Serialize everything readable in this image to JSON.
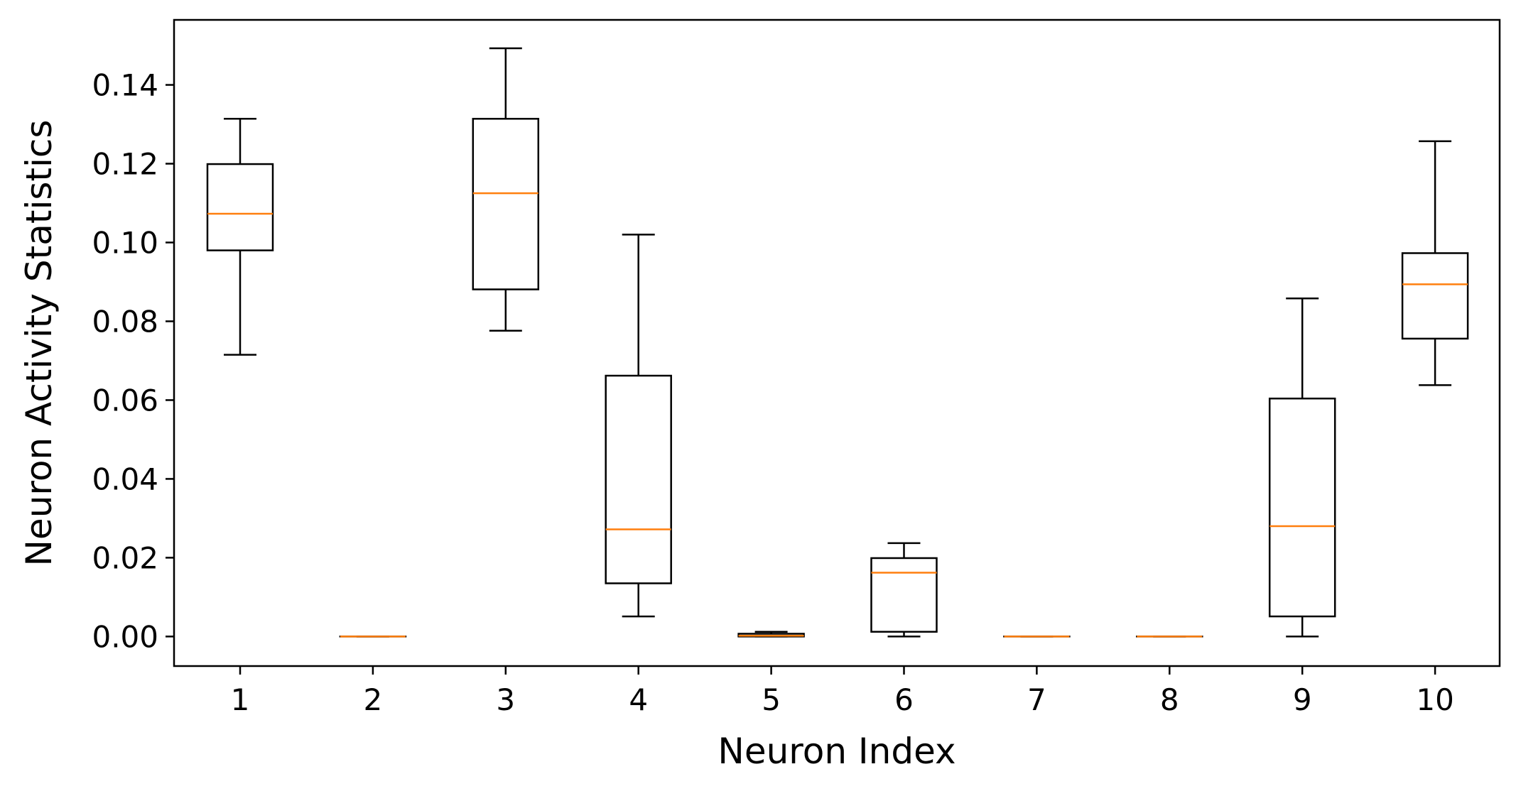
{
  "chart_data": {
    "type": "box",
    "xlabel": "Neuron Index",
    "ylabel": "Neuron Activity Statistics",
    "categories": [
      "1",
      "2",
      "3",
      "4",
      "5",
      "6",
      "7",
      "8",
      "9",
      "10"
    ],
    "ylim": [
      -0.0075,
      0.1565
    ],
    "yticks": [
      "0.00",
      "0.02",
      "0.04",
      "0.06",
      "0.08",
      "0.10",
      "0.12",
      "0.14"
    ],
    "grid": false,
    "boxes": [
      {
        "label": "1",
        "whisker_low": 0.0715,
        "q1": 0.098,
        "median": 0.1073,
        "q3": 0.1199,
        "whisker_high": 0.1314
      },
      {
        "label": "2",
        "whisker_low": 0.0,
        "q1": 0.0,
        "median": 0.0,
        "q3": 0.0,
        "whisker_high": 0.0
      },
      {
        "label": "3",
        "whisker_low": 0.0776,
        "q1": 0.0881,
        "median": 0.1125,
        "q3": 0.1314,
        "whisker_high": 0.1493
      },
      {
        "label": "4",
        "whisker_low": 0.0051,
        "q1": 0.0135,
        "median": 0.0272,
        "q3": 0.0662,
        "whisker_high": 0.102
      },
      {
        "label": "5",
        "whisker_low": 0.0,
        "q1": 0.0,
        "median": 0.0002,
        "q3": 0.0007,
        "whisker_high": 0.0012
      },
      {
        "label": "6",
        "whisker_low": 0.0,
        "q1": 0.0012,
        "median": 0.0162,
        "q3": 0.0199,
        "whisker_high": 0.0237
      },
      {
        "label": "7",
        "whisker_low": 0.0,
        "q1": 0.0,
        "median": 0.0,
        "q3": 0.0,
        "whisker_high": 0.0
      },
      {
        "label": "8",
        "whisker_low": 0.0,
        "q1": 0.0,
        "median": 0.0,
        "q3": 0.0,
        "whisker_high": 0.0
      },
      {
        "label": "9",
        "whisker_low": 0.0,
        "q1": 0.0051,
        "median": 0.028,
        "q3": 0.0604,
        "whisker_high": 0.0858
      },
      {
        "label": "10",
        "whisker_low": 0.0638,
        "q1": 0.0756,
        "median": 0.0894,
        "q3": 0.0973,
        "whisker_high": 0.1257
      }
    ],
    "colors": {
      "box": "#000000",
      "median": "#ff7f0e",
      "background": "#ffffff"
    }
  }
}
